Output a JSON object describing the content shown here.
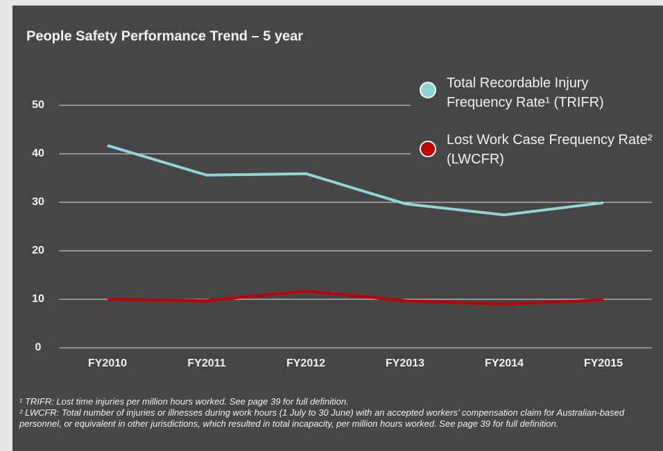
{
  "chart_data": {
    "type": "line",
    "title": "People Safety Performance Trend – 5 year",
    "categories": [
      "FY2010",
      "FY2011",
      "FY2012",
      "FY2013",
      "FY2014",
      "FY2015"
    ],
    "series": [
      {
        "name": "Total Recordable Injury Frequency Rate¹ (TRIFR)",
        "color": "#8fd6d6",
        "values": [
          41.7,
          35.6,
          35.9,
          29.7,
          27.4,
          29.9
        ]
      },
      {
        "name": "Lost Work Case Frequency Rate² (LWCFR)",
        "color": "#c00000",
        "values": [
          10.0,
          9.7,
          11.7,
          9.7,
          9.0,
          9.9
        ]
      }
    ],
    "ylim": [
      0,
      50
    ],
    "yticks": [
      0,
      10,
      20,
      30,
      40,
      50
    ],
    "grid": true,
    "footnotes": [
      "¹ TRIFR: Lost time injuries per million hours worked. See page 39 for full definition.",
      "² LWCFR: Total number of injuries or illnesses during work hours (1 July to 30 June) with an accepted workers’ compensation claim for Australian-based personnel, or equivalent in other jurisdictions, which resulted in total incapacity, per million hours worked.  See page 39 for full definition."
    ]
  }
}
